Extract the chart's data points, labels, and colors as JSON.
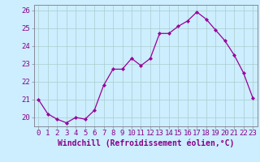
{
  "x": [
    0,
    1,
    2,
    3,
    4,
    5,
    6,
    7,
    8,
    9,
    10,
    11,
    12,
    13,
    14,
    15,
    16,
    17,
    18,
    19,
    20,
    21,
    22,
    23
  ],
  "y": [
    21.0,
    20.2,
    19.9,
    19.7,
    20.0,
    19.9,
    20.4,
    21.8,
    22.7,
    22.7,
    23.3,
    22.9,
    23.3,
    24.7,
    24.7,
    25.1,
    25.4,
    25.9,
    25.5,
    24.9,
    24.3,
    23.5,
    22.5,
    21.1
  ],
  "line_color": "#990099",
  "marker": "D",
  "marker_size": 2.2,
  "bg_color": "#cceeff",
  "grid_color": "#aacccc",
  "xlabel": "Windchill (Refroidissement éolien,°C)",
  "ylim": [
    19.5,
    26.3
  ],
  "yticks": [
    20,
    21,
    22,
    23,
    24,
    25,
    26
  ],
  "xticks": [
    0,
    1,
    2,
    3,
    4,
    5,
    6,
    7,
    8,
    9,
    10,
    11,
    12,
    13,
    14,
    15,
    16,
    17,
    18,
    19,
    20,
    21,
    22,
    23
  ],
  "xlabel_fontsize": 7.0,
  "tick_fontsize": 6.5,
  "label_color": "#880088"
}
